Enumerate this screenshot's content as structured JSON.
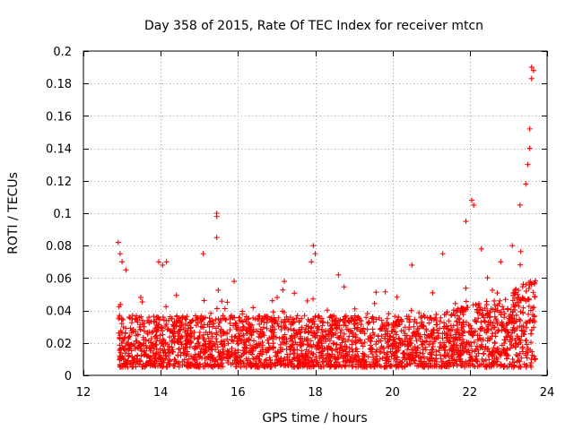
{
  "chart_data": {
    "type": "scatter",
    "title": "Day 358 of 2015, Rate Of TEC Index for receiver mtcn",
    "xlabel": "GPS time / hours",
    "ylabel": "ROTI / TECUs",
    "xlim": [
      12,
      24
    ],
    "ylim": [
      0,
      0.2
    ],
    "xticks": [
      12,
      14,
      16,
      18,
      20,
      22,
      24
    ],
    "xtick_labels": [
      "12",
      "14",
      "16",
      "18",
      "20",
      "22",
      "24"
    ],
    "yticks": [
      0,
      0.02,
      0.04,
      0.06,
      0.08,
      0.1,
      0.12,
      0.14,
      0.16,
      0.18,
      0.2
    ],
    "ytick_labels": [
      "0",
      "0.02",
      "0.04",
      "0.06",
      "0.08",
      "0.1",
      "0.12",
      "0.14",
      "0.16",
      "0.18",
      "0.2"
    ],
    "grid": true,
    "marker": "+",
    "color": "#ff0000",
    "series": [
      {
        "name": "ROTI",
        "x_range": [
          12.9,
          23.7
        ],
        "typical_range": [
          0.005,
          0.04
        ],
        "notable_points": [
          {
            "x": 12.9,
            "y": 0.082
          },
          {
            "x": 12.95,
            "y": 0.075
          },
          {
            "x": 13.0,
            "y": 0.07
          },
          {
            "x": 13.1,
            "y": 0.065
          },
          {
            "x": 13.95,
            "y": 0.07
          },
          {
            "x": 14.05,
            "y": 0.068
          },
          {
            "x": 14.15,
            "y": 0.07
          },
          {
            "x": 15.1,
            "y": 0.075
          },
          {
            "x": 15.45,
            "y": 0.1
          },
          {
            "x": 15.45,
            "y": 0.098
          },
          {
            "x": 15.45,
            "y": 0.085
          },
          {
            "x": 15.9,
            "y": 0.058
          },
          {
            "x": 17.2,
            "y": 0.058
          },
          {
            "x": 17.95,
            "y": 0.08
          },
          {
            "x": 18.0,
            "y": 0.075
          },
          {
            "x": 17.9,
            "y": 0.07
          },
          {
            "x": 18.6,
            "y": 0.062
          },
          {
            "x": 20.5,
            "y": 0.068
          },
          {
            "x": 21.3,
            "y": 0.075
          },
          {
            "x": 21.9,
            "y": 0.095
          },
          {
            "x": 22.05,
            "y": 0.108
          },
          {
            "x": 22.1,
            "y": 0.105
          },
          {
            "x": 22.3,
            "y": 0.078
          },
          {
            "x": 22.8,
            "y": 0.07
          },
          {
            "x": 23.1,
            "y": 0.08
          },
          {
            "x": 23.3,
            "y": 0.105
          },
          {
            "x": 23.45,
            "y": 0.118
          },
          {
            "x": 23.5,
            "y": 0.13
          },
          {
            "x": 23.55,
            "y": 0.14
          },
          {
            "x": 23.55,
            "y": 0.152
          },
          {
            "x": 23.6,
            "y": 0.183
          },
          {
            "x": 23.6,
            "y": 0.19
          },
          {
            "x": 23.65,
            "y": 0.188
          }
        ]
      }
    ]
  }
}
